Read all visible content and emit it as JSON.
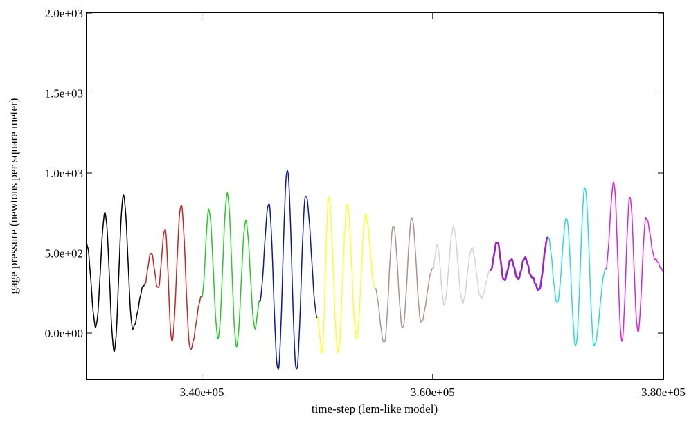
{
  "chart_data": {
    "type": "line",
    "title": "",
    "xlabel": "time-step (lem-like model)",
    "ylabel": "gage pressure (newtons per square meter)",
    "xlim": [
      330000,
      380000
    ],
    "ylim": [
      -290,
      2000
    ],
    "x_ticks": [
      340000,
      360000,
      380000
    ],
    "x_tick_labels": [
      "3.40e+05",
      "3.60e+05",
      "3.80e+05"
    ],
    "y_ticks": [
      0,
      500,
      1000,
      1500,
      2000
    ],
    "y_tick_labels": [
      "0.0e+00",
      "5.0e+02",
      "1.0e+03",
      "1.5e+03",
      "2.0e+03"
    ],
    "grid": false,
    "legend": "none",
    "series": [
      {
        "color": "#000000",
        "x": [
          330000,
          330800,
          331600,
          332400,
          333200,
          334000,
          335000
        ],
        "y": [
          560,
          40,
          750,
          -110,
          860,
          30,
          300
        ]
      },
      {
        "color": "#cc2222",
        "x": [
          335000,
          335600,
          336200,
          336800,
          337400,
          338200,
          339000,
          340000
        ],
        "y": [
          300,
          500,
          280,
          650,
          -50,
          800,
          -100,
          230
        ]
      },
      {
        "color": "#22cc22",
        "x": [
          340000,
          340600,
          341400,
          342200,
          343000,
          343800,
          344600,
          345000
        ],
        "y": [
          230,
          770,
          -30,
          870,
          -80,
          700,
          30,
          200
        ]
      },
      {
        "color": "#0b1a9e",
        "x": [
          345000,
          345800,
          346600,
          347400,
          348200,
          349000,
          350000
        ],
        "y": [
          200,
          810,
          -230,
          1020,
          -230,
          860,
          100
        ]
      },
      {
        "color": "#ffff22",
        "x": [
          350000,
          350400,
          351000,
          351800,
          352600,
          353400,
          354200,
          355000
        ],
        "y": [
          100,
          -120,
          850,
          -120,
          800,
          -30,
          740,
          280
        ]
      },
      {
        "color": "#b09090",
        "x": [
          355000,
          355800,
          356600,
          357400,
          358200,
          359000,
          360000
        ],
        "y": [
          280,
          -60,
          670,
          30,
          720,
          70,
          400
        ]
      },
      {
        "color": "#d3d3d3",
        "x": [
          360000,
          360400,
          361000,
          361800,
          362600,
          363400,
          364200,
          365000
        ],
        "y": [
          400,
          550,
          180,
          660,
          190,
          530,
          220,
          390
        ]
      },
      {
        "color": "#9922cc",
        "x": [
          365000,
          365600,
          366200,
          366800,
          367400,
          368000,
          368600,
          369200,
          370000
        ],
        "y": [
          390,
          570,
          330,
          460,
          340,
          470,
          350,
          270,
          600
        ]
      },
      {
        "color": "#22dddd",
        "x": [
          370000,
          370800,
          371600,
          372400,
          373200,
          374000,
          375000
        ],
        "y": [
          600,
          190,
          720,
          -80,
          910,
          -80,
          400
        ]
      },
      {
        "color": "#dd22dd",
        "x": [
          375000,
          375700,
          376400,
          377100,
          377800,
          378500,
          379300,
          380000
        ],
        "y": [
          400,
          940,
          -50,
          850,
          10,
          720,
          460,
          390
        ]
      }
    ]
  }
}
